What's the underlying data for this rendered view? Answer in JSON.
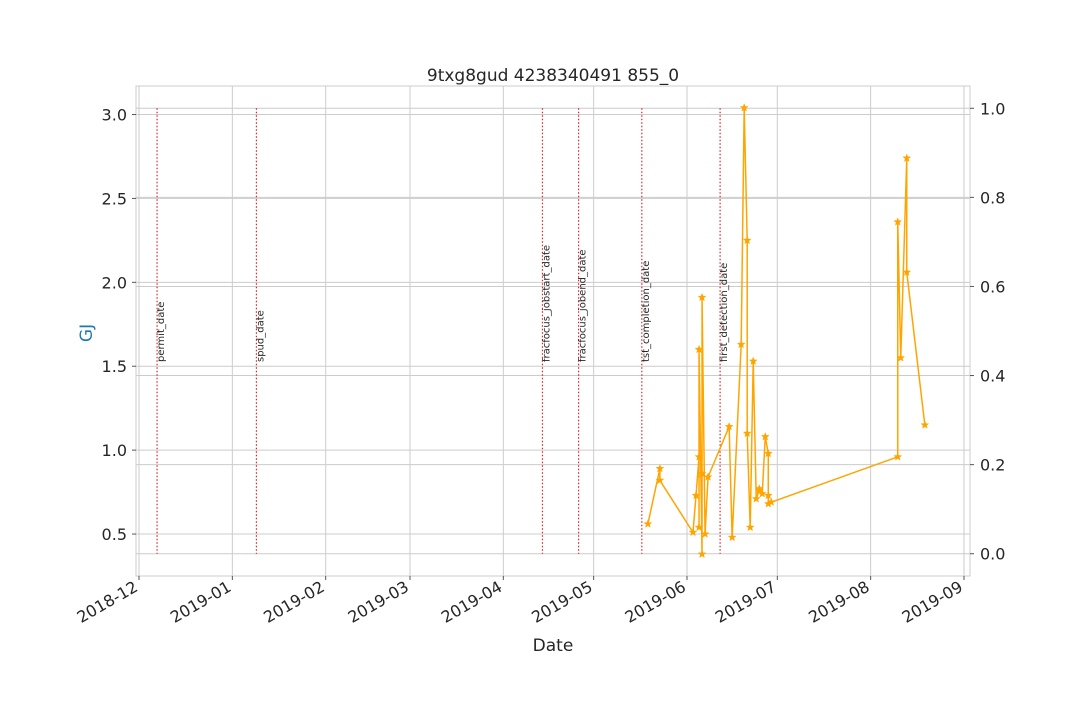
{
  "chart_data": {
    "type": "line",
    "title": "9txg8gud 4238340491 855_0",
    "xlabel": "Date",
    "ylabel": "GJ",
    "xlim": [
      "2018-11-30",
      "2019-09-03"
    ],
    "ylim": [
      0.25,
      3.17
    ],
    "y2lim": [
      -0.05,
      1.05
    ],
    "grid": true,
    "x_ticks": [
      "2018-12",
      "2019-01",
      "2019-02",
      "2019-03",
      "2019-04",
      "2019-05",
      "2019-06",
      "2019-07",
      "2019-08",
      "2019-09"
    ],
    "x_tick_dates": [
      "2018-12-01",
      "2019-01-01",
      "2019-02-01",
      "2019-03-01",
      "2019-04-01",
      "2019-05-01",
      "2019-06-01",
      "2019-07-01",
      "2019-08-01",
      "2019-09-01"
    ],
    "y_ticks": [
      "0.5",
      "1.0",
      "1.5",
      "2.0",
      "2.5",
      "3.0"
    ],
    "y_tick_values": [
      0.5,
      1.0,
      1.5,
      2.0,
      2.5,
      3.0
    ],
    "y2_ticks": [
      "0.0",
      "0.2",
      "0.4",
      "0.6",
      "0.8",
      "1.0"
    ],
    "y2_tick_values": [
      0.0,
      0.2,
      0.4,
      0.6,
      0.8,
      1.0
    ],
    "events": [
      {
        "label": "permit_date",
        "date": "2018-12-07"
      },
      {
        "label": "spud_date",
        "date": "2019-01-09"
      },
      {
        "label": "fracfocus_jobstart_date",
        "date": "2019-04-14"
      },
      {
        "label": "fracfocus_jobend_date",
        "date": "2019-04-26"
      },
      {
        "label": "tst_completion_date",
        "date": "2019-05-17"
      },
      {
        "label": "first_detection_date",
        "date": "2019-06-12"
      }
    ],
    "series": [
      {
        "color": "#ffa500",
        "marker": "star",
        "x": [
          "2019-05-19",
          "2019-05-23",
          "2019-05-23",
          "2019-06-03",
          "2019-06-04",
          "2019-06-05",
          "2019-06-05",
          "2019-06-05",
          "2019-06-06",
          "2019-06-06",
          "2019-06-06",
          "2019-06-07",
          "2019-06-08",
          "2019-06-15",
          "2019-06-16",
          "2019-06-19",
          "2019-06-20",
          "2019-06-21",
          "2019-06-21",
          "2019-06-22",
          "2019-06-23",
          "2019-06-24",
          "2019-06-25",
          "2019-06-25",
          "2019-06-26",
          "2019-06-27",
          "2019-06-28",
          "2019-06-28",
          "2019-06-28",
          "2019-06-29",
          "2019-08-10",
          "2019-08-10",
          "2019-08-11",
          "2019-08-13",
          "2019-08-13",
          "2019-08-19"
        ],
        "values": [
          0.56,
          0.89,
          0.82,
          0.51,
          0.73,
          0.96,
          0.54,
          1.6,
          0.38,
          0.86,
          1.91,
          0.5,
          0.84,
          1.14,
          0.48,
          1.63,
          3.04,
          2.25,
          1.1,
          0.54,
          1.53,
          0.71,
          0.76,
          0.77,
          0.74,
          1.08,
          0.98,
          0.73,
          0.68,
          0.69,
          0.96,
          2.36,
          1.55,
          2.74,
          2.06,
          1.15
        ]
      }
    ]
  }
}
